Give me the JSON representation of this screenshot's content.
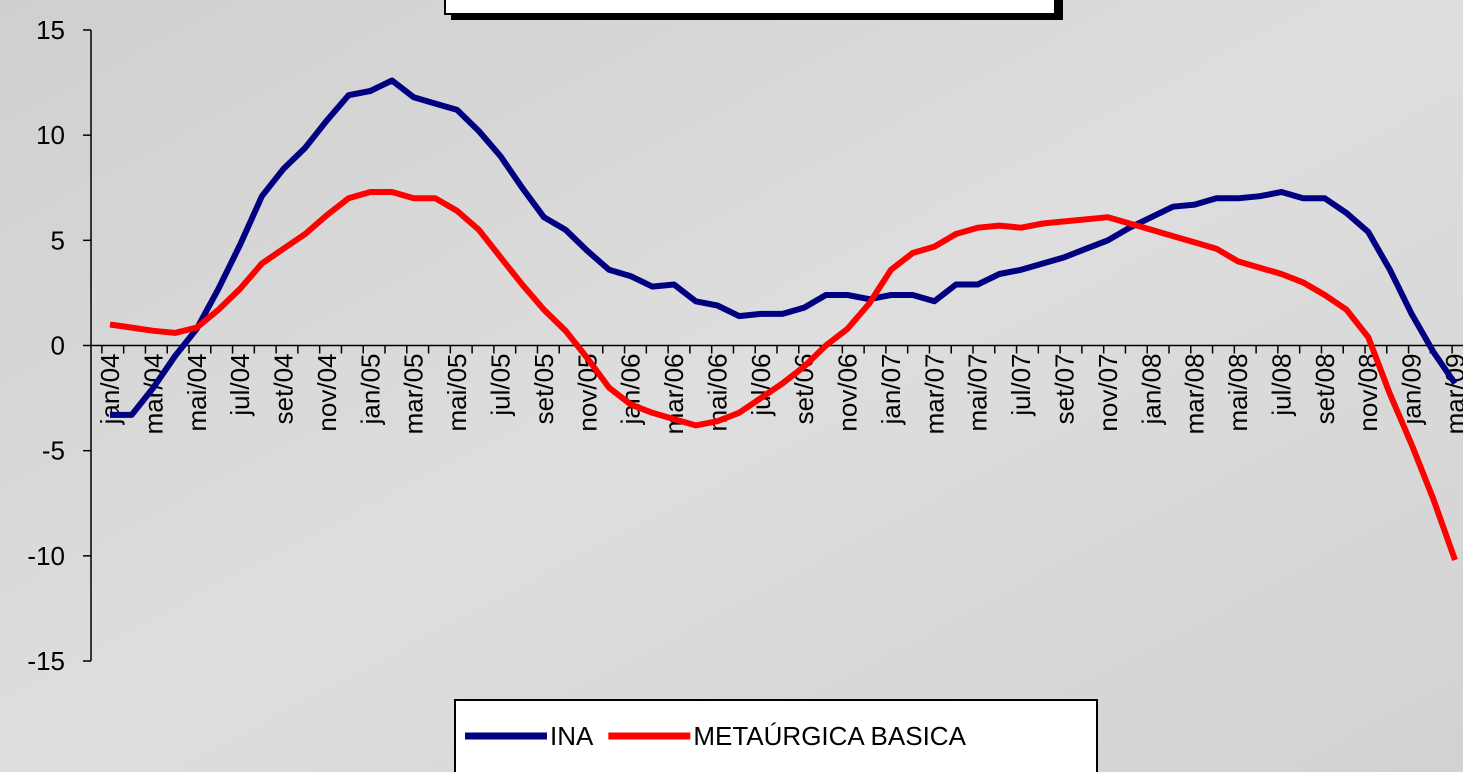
{
  "chart_data": {
    "type": "line",
    "categories": [
      "jan/04",
      null,
      "mar/04",
      null,
      "mai/04",
      null,
      "jul/04",
      null,
      "set/04",
      null,
      "nov/04",
      null,
      "jan/05",
      null,
      "mar/05",
      null,
      "mai/05",
      null,
      "jul/05",
      null,
      "set/05",
      null,
      "nov/05",
      null,
      "jan/06",
      null,
      "mar/06",
      null,
      "mai/06",
      null,
      "jul/06",
      null,
      "set/06",
      null,
      "nov/06",
      null,
      "jan/07",
      null,
      "mar/07",
      null,
      "mai/07",
      null,
      "jul/07",
      null,
      "set/07",
      null,
      "nov/07",
      null,
      "jan/08",
      null,
      "mar/08",
      null,
      "mai/08",
      null,
      "jul/08",
      null,
      "set/08",
      null,
      "nov/08",
      null,
      "jan/09",
      null,
      "mar/09"
    ],
    "series": [
      {
        "name": "INA",
        "color": "#000080",
        "values": [
          -3.3,
          -3.3,
          -2.0,
          -0.5,
          0.8,
          2.7,
          4.8,
          7.1,
          8.4,
          9.4,
          10.7,
          11.9,
          12.1,
          12.6,
          11.8,
          11.5,
          11.2,
          10.2,
          9.0,
          7.5,
          6.1,
          5.5,
          4.5,
          3.6,
          3.3,
          2.8,
          2.9,
          2.1,
          1.9,
          1.4,
          1.5,
          1.5,
          1.8,
          2.4,
          2.4,
          2.2,
          2.4,
          2.4,
          2.1,
          2.9,
          2.9,
          3.4,
          3.6,
          3.9,
          4.2,
          4.6,
          5.0,
          5.6,
          6.1,
          6.6,
          6.7,
          7.0,
          7.0,
          7.1,
          7.3,
          7.0,
          7.0,
          6.3,
          5.4,
          3.6,
          1.5,
          -0.3,
          -1.8
        ]
      },
      {
        "name": "METAÚRGICA BASICA",
        "color": "#ff0000",
        "values": [
          1.0,
          0.85,
          0.7,
          0.6,
          0.85,
          1.7,
          2.7,
          3.9,
          4.6,
          5.3,
          6.2,
          7.0,
          7.3,
          7.3,
          7.0,
          7.0,
          6.4,
          5.5,
          4.2,
          2.9,
          1.7,
          0.7,
          -0.6,
          -2.0,
          -2.8,
          -3.2,
          -3.5,
          -3.8,
          -3.6,
          -3.2,
          -2.5,
          -1.8,
          -1.0,
          0.0,
          0.8,
          2.0,
          3.6,
          4.4,
          4.7,
          5.3,
          5.6,
          5.7,
          5.6,
          5.8,
          5.9,
          6.0,
          6.1,
          5.8,
          5.5,
          5.2,
          4.9,
          4.6,
          4.0,
          3.7,
          3.4,
          3.0,
          2.4,
          1.7,
          0.4,
          -2.3,
          -4.7,
          -7.3,
          -10.2
        ]
      }
    ],
    "ylim": [
      -15,
      15
    ],
    "yticks": [
      -15,
      -10,
      -5,
      0,
      5,
      10,
      15
    ]
  }
}
